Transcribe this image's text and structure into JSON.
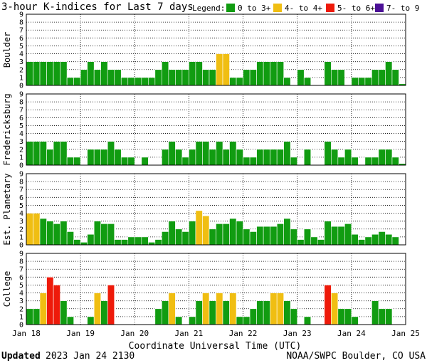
{
  "title": "3-hour K-indices for Last 7 days",
  "legend": {
    "label": "Legend:",
    "items": [
      {
        "label": "0 to 3+",
        "color": "#119c11"
      },
      {
        "label": "4- to 4+",
        "color": "#f0be12"
      },
      {
        "label": "5- to 6+",
        "color": "#ee1a0a"
      },
      {
        "label": "7- to 9",
        "color": "#4b1096"
      }
    ]
  },
  "footer": {
    "updated_label": "Updated",
    "updated_time": "2023 Jan 24 2130",
    "source": "NOAA/SWPC Boulder, CO USA"
  },
  "chart_data": {
    "type": "bar",
    "xlabel": "Coordinate Universal Time (UTC)",
    "x_ticks": [
      "Jan 18",
      "Jan 19",
      "Jan 20",
      "Jan 21",
      "Jan 22",
      "Jan 23",
      "Jan 24",
      "Jan 25"
    ],
    "ylim": [
      0,
      9
    ],
    "y_ticks": [
      "0",
      "1",
      "2",
      "3",
      "4",
      "5",
      "6",
      "7",
      "8",
      "9"
    ],
    "bars_per_panel": 56,
    "interval_hours": 3,
    "color_thresholds": [
      {
        "min": 0,
        "max": 3.67,
        "color": "#119c11"
      },
      {
        "min": 3.67,
        "max": 4.67,
        "color": "#f0be12"
      },
      {
        "min": 4.67,
        "max": 6.67,
        "color": "#ee1a0a"
      },
      {
        "min": 6.67,
        "max": 9,
        "color": "#4b1096"
      }
    ],
    "panels": [
      {
        "name": "Boulder",
        "values": [
          3,
          3,
          3,
          3,
          3,
          3,
          1,
          1,
          2,
          3,
          2,
          3,
          2,
          2,
          1,
          1,
          1,
          1,
          1,
          2,
          3,
          2,
          2,
          2,
          3,
          3,
          2,
          2,
          4,
          4,
          1,
          1,
          2,
          2,
          3,
          3,
          3,
          3,
          1,
          0,
          2,
          1,
          0,
          0,
          3,
          2,
          2,
          0,
          1,
          1,
          1,
          2,
          2,
          3,
          2,
          0.2
        ]
      },
      {
        "name": "Fredericksburg",
        "values": [
          3,
          3,
          3,
          2,
          3,
          3,
          1,
          1,
          0,
          2,
          2,
          2,
          3,
          2,
          1,
          1,
          0,
          1,
          0,
          0,
          2,
          3,
          2,
          1,
          2,
          3,
          3,
          2,
          3,
          2,
          3,
          2,
          1,
          1,
          2,
          2,
          2,
          2,
          3,
          1,
          0,
          2,
          0,
          0,
          3,
          2,
          1,
          2,
          1,
          0,
          1,
          1,
          2,
          2,
          1,
          0.2
        ]
      },
      {
        "name": "Est. Planetary",
        "values": [
          4,
          4,
          3.33,
          3,
          2.67,
          3,
          1.67,
          0.67,
          0.33,
          1.33,
          3,
          2.67,
          2.67,
          0.67,
          0.67,
          1,
          1,
          1,
          0.33,
          0.67,
          1.67,
          3,
          2,
          1.67,
          3,
          4.33,
          3.67,
          2,
          2.67,
          2.67,
          3.33,
          3,
          2,
          1.67,
          2.33,
          2.33,
          2.33,
          2.67,
          3.33,
          2,
          0.67,
          2,
          1,
          0.67,
          3,
          2.33,
          2.33,
          2.67,
          1.33,
          0.67,
          1,
          1.33,
          1.67,
          1.33,
          1,
          0
        ]
      },
      {
        "name": "College",
        "values": [
          2,
          2,
          4,
          6,
          5,
          3,
          1,
          0,
          0,
          1,
          4,
          3,
          5,
          0,
          0,
          0,
          0,
          0,
          0,
          2,
          3,
          4,
          1,
          0,
          1,
          3,
          4,
          3,
          4,
          3,
          4,
          1,
          1,
          2,
          3,
          3,
          4,
          4,
          3,
          2,
          0,
          1,
          0,
          0,
          5,
          4,
          2,
          2,
          1,
          0,
          0,
          3,
          2,
          2,
          0,
          0
        ]
      }
    ]
  }
}
